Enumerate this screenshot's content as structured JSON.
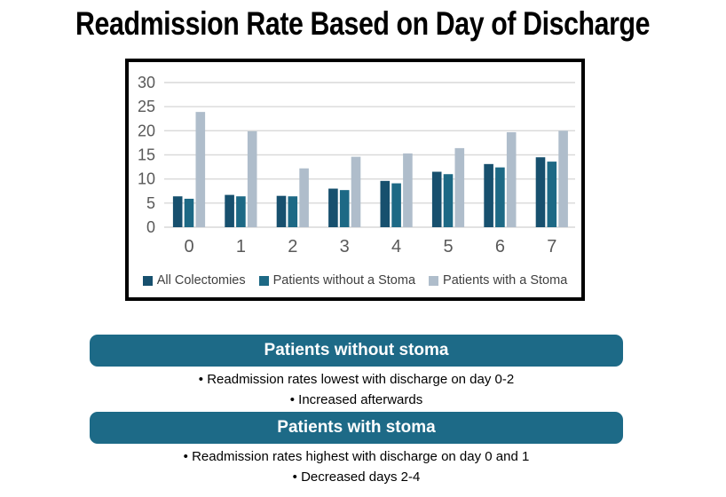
{
  "page": {
    "title": "Readmission Rate Based on Day of Discharge"
  },
  "chart_data": {
    "type": "bar",
    "title": "",
    "xlabel": "",
    "ylabel": "",
    "categories": [
      "0",
      "1",
      "2",
      "3",
      "4",
      "5",
      "6",
      "7"
    ],
    "series": [
      {
        "name": "All Colectomies",
        "color": "#17506E",
        "values": [
          6.4,
          6.7,
          6.5,
          8.0,
          9.6,
          11.5,
          13.1,
          14.5
        ]
      },
      {
        "name": "Patients without a Stoma",
        "color": "#1D6985",
        "values": [
          5.9,
          6.4,
          6.4,
          7.7,
          9.1,
          11.0,
          12.4,
          13.6
        ]
      },
      {
        "name": "Patients with a Stoma",
        "color": "#AFBDCB",
        "values": [
          23.9,
          19.9,
          12.2,
          14.6,
          15.3,
          16.4,
          19.7,
          20.0
        ]
      }
    ],
    "ylim": [
      0,
      30
    ],
    "yticks": [
      0,
      5,
      10,
      15,
      20,
      25,
      30
    ],
    "grid": true,
    "legend_position": "bottom"
  },
  "sections": [
    {
      "header": "Patients without stoma",
      "bullets": [
        "Readmission rates lowest with discharge on day 0-2",
        "Increased afterwards"
      ]
    },
    {
      "header": "Patients with stoma",
      "bullets": [
        "Readmission rates highest with discharge on day 0 and 1",
        "Decreased days 2-4"
      ]
    }
  ],
  "colors": {
    "banner": "#1D6A87",
    "banner_text": "#FFFFFF",
    "frame_border": "#000000",
    "gridline": "#D9D9D9",
    "y_tick_label": "#595959",
    "x_tick_label": "#595959",
    "legend_text": "#404040",
    "title_text": "#000000"
  }
}
